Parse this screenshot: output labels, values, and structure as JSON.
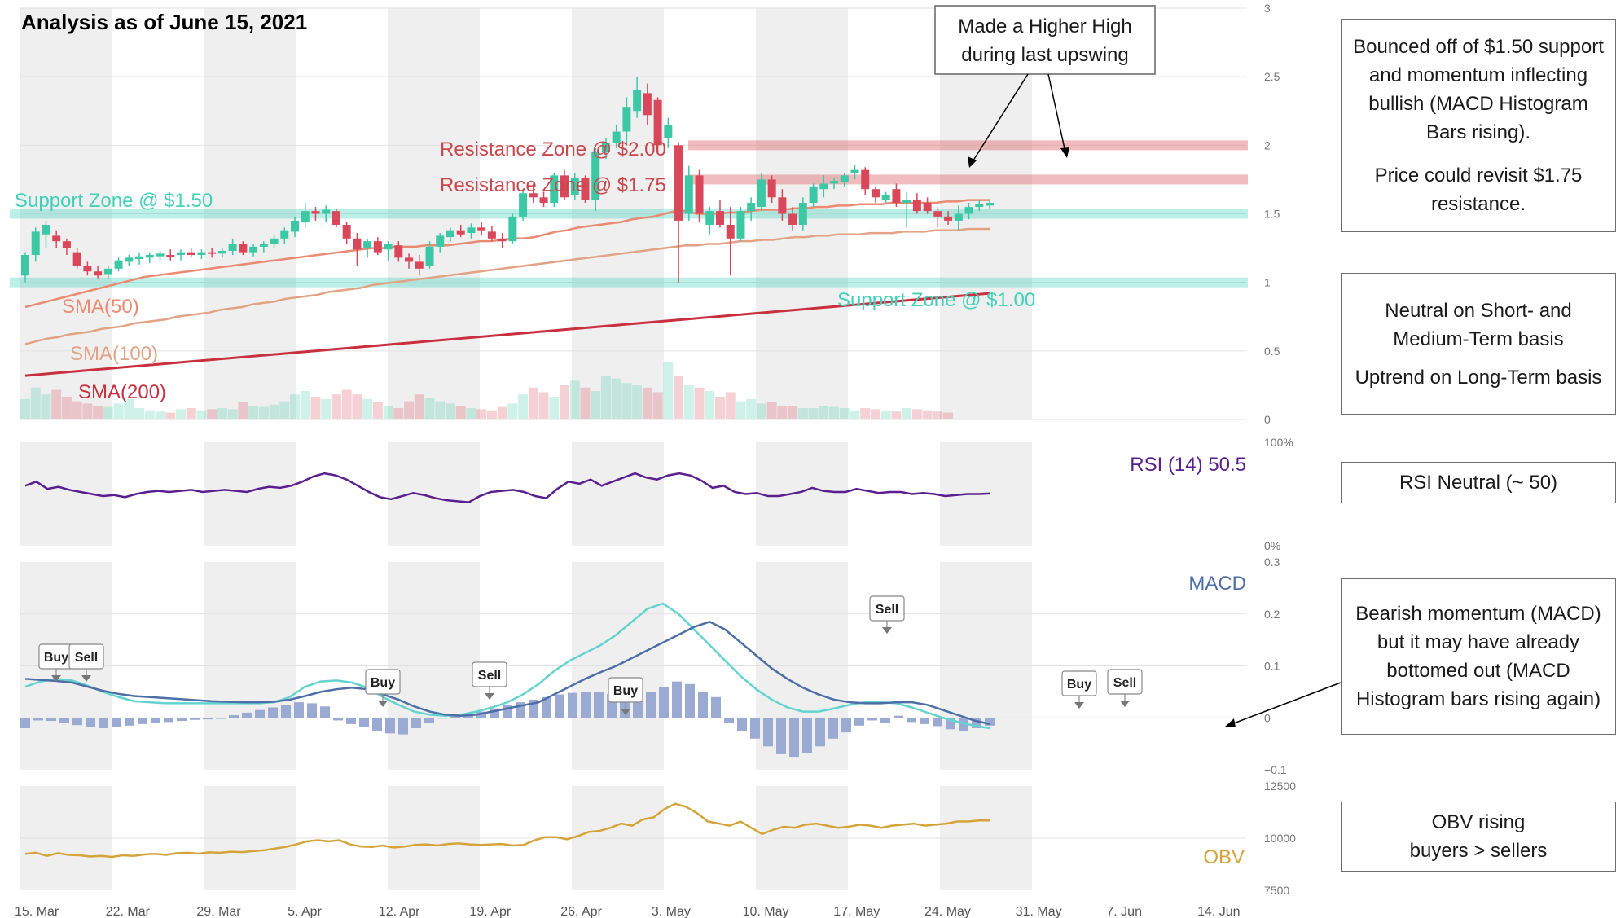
{
  "title": "Analysis as of June 15, 2021",
  "colors": {
    "up": "#3cc8a5",
    "down": "#d9485a",
    "support": "#3fd2b9",
    "resistance": "#e06a6e",
    "sma50": "#ea8a72",
    "sma100": "#e2a284",
    "sma200": "#c8303f",
    "rsi": "#5a1f8f",
    "macd": "#4e6ea8",
    "signal": "#63d3cf",
    "hist": "#9aaad3",
    "obv": "#d4a43a"
  },
  "x_labels": [
    "15. Mar",
    "22. Mar",
    "29. Mar",
    "5. Apr",
    "12. Apr",
    "19. Apr",
    "26. Apr",
    "3. May",
    "10. May",
    "17. May",
    "24. May",
    "31. May",
    "7. Jun",
    "14. Jun"
  ],
  "price_axis": {
    "ticks": [
      "3",
      "2.5",
      "2",
      "1.5",
      "1",
      "0.5",
      "0"
    ],
    "min": 0,
    "max": 3
  },
  "rsi_axis": {
    "ticks": [
      "100%",
      "0%"
    ]
  },
  "macd_axis": {
    "ticks": [
      "0.3",
      "0.2",
      "0.1",
      "0",
      "−0.1"
    ],
    "min": -0.1,
    "max": 0.3
  },
  "obv_axis": {
    "ticks": [
      "12500",
      "10000",
      "7500"
    ],
    "min": 7500,
    "max": 12500
  },
  "zones": {
    "support_150": "Support Zone @ $1.50",
    "support_100": "Support Zone @ $1.00",
    "resistance_200": "Resistance Zone @ $2.00",
    "resistance_175": "Resistance Zone @ $1.75"
  },
  "sma_labels": {
    "sma50": "SMA(50)",
    "sma100": "SMA(100)",
    "sma200": "SMA(200)"
  },
  "panel_labels": {
    "rsi": "RSI (14)  50.5",
    "macd": "MACD",
    "obv": "OBV"
  },
  "callout": [
    "Made a Higher High",
    "during last upswing"
  ],
  "signal_labels": [
    "Buy",
    "Sell",
    "Buy",
    "Sell",
    "Buy",
    "Sell",
    "Buy",
    "Sell"
  ],
  "notes": {
    "price_1": "Bounced off of $1.50 support and momentum inflecting bullish (MACD Histogram Bars rising).",
    "price_2": "Price could revisit $1.75 resistance.",
    "trend_1": "Neutral on Short- and Medium-Term basis",
    "trend_2": "Uptrend on Long-Term basis",
    "rsi": "RSI Neutral (~ 50)",
    "macd": "Bearish momentum (MACD) but it may have already bottomed out (MACD Histogram bars rising again)",
    "obv_1": "OBV rising",
    "obv_2": "buyers > sellers"
  },
  "chart_data": {
    "type": "candlestick",
    "title": "Analysis as of June 15, 2021",
    "candles": [
      {
        "o": 1.05,
        "h": 1.22,
        "l": 1.0,
        "c": 1.2
      },
      {
        "o": 1.2,
        "h": 1.4,
        "l": 1.15,
        "c": 1.37
      },
      {
        "o": 1.35,
        "h": 1.45,
        "l": 1.25,
        "c": 1.42
      },
      {
        "o": 1.34,
        "h": 1.38,
        "l": 1.25,
        "c": 1.3
      },
      {
        "o": 1.3,
        "h": 1.32,
        "l": 1.2,
        "c": 1.25
      },
      {
        "o": 1.22,
        "h": 1.25,
        "l": 1.1,
        "c": 1.12
      },
      {
        "o": 1.12,
        "h": 1.15,
        "l": 1.05,
        "c": 1.08
      },
      {
        "o": 1.08,
        "h": 1.12,
        "l": 1.03,
        "c": 1.05
      },
      {
        "o": 1.06,
        "h": 1.12,
        "l": 1.03,
        "c": 1.1
      },
      {
        "o": 1.1,
        "h": 1.18,
        "l": 1.08,
        "c": 1.16
      },
      {
        "o": 1.15,
        "h": 1.2,
        "l": 1.12,
        "c": 1.18
      },
      {
        "o": 1.17,
        "h": 1.22,
        "l": 1.13,
        "c": 1.19
      },
      {
        "o": 1.18,
        "h": 1.22,
        "l": 1.14,
        "c": 1.2
      },
      {
        "o": 1.19,
        "h": 1.23,
        "l": 1.15,
        "c": 1.21
      },
      {
        "o": 1.2,
        "h": 1.24,
        "l": 1.16,
        "c": 1.19
      },
      {
        "o": 1.2,
        "h": 1.24,
        "l": 1.16,
        "c": 1.22
      },
      {
        "o": 1.22,
        "h": 1.25,
        "l": 1.18,
        "c": 1.2
      },
      {
        "o": 1.2,
        "h": 1.24,
        "l": 1.17,
        "c": 1.22
      },
      {
        "o": 1.22,
        "h": 1.25,
        "l": 1.18,
        "c": 1.21
      },
      {
        "o": 1.21,
        "h": 1.25,
        "l": 1.18,
        "c": 1.23
      },
      {
        "o": 1.23,
        "h": 1.32,
        "l": 1.2,
        "c": 1.28
      },
      {
        "o": 1.28,
        "h": 1.3,
        "l": 1.2,
        "c": 1.22
      },
      {
        "o": 1.22,
        "h": 1.28,
        "l": 1.19,
        "c": 1.26
      },
      {
        "o": 1.26,
        "h": 1.3,
        "l": 1.22,
        "c": 1.28
      },
      {
        "o": 1.28,
        "h": 1.35,
        "l": 1.25,
        "c": 1.32
      },
      {
        "o": 1.32,
        "h": 1.4,
        "l": 1.28,
        "c": 1.38
      },
      {
        "o": 1.37,
        "h": 1.48,
        "l": 1.33,
        "c": 1.45
      },
      {
        "o": 1.44,
        "h": 1.58,
        "l": 1.4,
        "c": 1.52
      },
      {
        "o": 1.52,
        "h": 1.55,
        "l": 1.45,
        "c": 1.5
      },
      {
        "o": 1.5,
        "h": 1.56,
        "l": 1.44,
        "c": 1.53
      },
      {
        "o": 1.52,
        "h": 1.54,
        "l": 1.4,
        "c": 1.42
      },
      {
        "o": 1.42,
        "h": 1.44,
        "l": 1.28,
        "c": 1.32
      },
      {
        "o": 1.32,
        "h": 1.36,
        "l": 1.12,
        "c": 1.24
      },
      {
        "o": 1.25,
        "h": 1.32,
        "l": 1.18,
        "c": 1.3
      },
      {
        "o": 1.3,
        "h": 1.33,
        "l": 1.2,
        "c": 1.22
      },
      {
        "o": 1.24,
        "h": 1.3,
        "l": 1.16,
        "c": 1.28
      },
      {
        "o": 1.27,
        "h": 1.3,
        "l": 1.15,
        "c": 1.18
      },
      {
        "o": 1.18,
        "h": 1.21,
        "l": 1.1,
        "c": 1.15
      },
      {
        "o": 1.15,
        "h": 1.2,
        "l": 1.05,
        "c": 1.1
      },
      {
        "o": 1.12,
        "h": 1.3,
        "l": 1.1,
        "c": 1.26
      },
      {
        "o": 1.26,
        "h": 1.36,
        "l": 1.22,
        "c": 1.34
      },
      {
        "o": 1.33,
        "h": 1.4,
        "l": 1.3,
        "c": 1.38
      },
      {
        "o": 1.38,
        "h": 1.42,
        "l": 1.33,
        "c": 1.35
      },
      {
        "o": 1.36,
        "h": 1.43,
        "l": 1.32,
        "c": 1.4
      },
      {
        "o": 1.4,
        "h": 1.44,
        "l": 1.34,
        "c": 1.38
      },
      {
        "o": 1.37,
        "h": 1.41,
        "l": 1.3,
        "c": 1.32
      },
      {
        "o": 1.32,
        "h": 1.36,
        "l": 1.25,
        "c": 1.3
      },
      {
        "o": 1.3,
        "h": 1.5,
        "l": 1.28,
        "c": 1.48
      },
      {
        "o": 1.48,
        "h": 1.68,
        "l": 1.45,
        "c": 1.65
      },
      {
        "o": 1.65,
        "h": 1.72,
        "l": 1.58,
        "c": 1.62
      },
      {
        "o": 1.62,
        "h": 1.66,
        "l": 1.55,
        "c": 1.58
      },
      {
        "o": 1.58,
        "h": 1.8,
        "l": 1.55,
        "c": 1.78
      },
      {
        "o": 1.78,
        "h": 1.82,
        "l": 1.6,
        "c": 1.62
      },
      {
        "o": 1.64,
        "h": 1.8,
        "l": 1.6,
        "c": 1.76
      },
      {
        "o": 1.76,
        "h": 1.78,
        "l": 1.58,
        "c": 1.6
      },
      {
        "o": 1.6,
        "h": 1.98,
        "l": 1.52,
        "c": 1.95
      },
      {
        "o": 1.95,
        "h": 2.05,
        "l": 1.9,
        "c": 2.02
      },
      {
        "o": 2.02,
        "h": 2.15,
        "l": 1.98,
        "c": 2.1
      },
      {
        "o": 2.1,
        "h": 2.35,
        "l": 2.0,
        "c": 2.28
      },
      {
        "o": 2.25,
        "h": 2.5,
        "l": 2.2,
        "c": 2.4
      },
      {
        "o": 2.38,
        "h": 2.45,
        "l": 2.15,
        "c": 2.22
      },
      {
        "o": 2.33,
        "h": 2.35,
        "l": 1.95,
        "c": 2.0
      },
      {
        "o": 2.05,
        "h": 2.2,
        "l": 1.98,
        "c": 2.15
      },
      {
        "o": 2.0,
        "h": 2.02,
        "l": 1.0,
        "c": 1.45
      },
      {
        "o": 1.5,
        "h": 1.85,
        "l": 1.45,
        "c": 1.78
      },
      {
        "o": 1.78,
        "h": 1.82,
        "l": 1.44,
        "c": 1.5
      },
      {
        "o": 1.42,
        "h": 1.55,
        "l": 1.35,
        "c": 1.52
      },
      {
        "o": 1.52,
        "h": 1.6,
        "l": 1.4,
        "c": 1.42
      },
      {
        "o": 1.42,
        "h": 1.55,
        "l": 1.05,
        "c": 1.32
      },
      {
        "o": 1.32,
        "h": 1.55,
        "l": 1.3,
        "c": 1.52
      },
      {
        "o": 1.52,
        "h": 1.62,
        "l": 1.45,
        "c": 1.58
      },
      {
        "o": 1.55,
        "h": 1.8,
        "l": 1.52,
        "c": 1.75
      },
      {
        "o": 1.75,
        "h": 1.78,
        "l": 1.58,
        "c": 1.62
      },
      {
        "o": 1.62,
        "h": 1.68,
        "l": 1.45,
        "c": 1.5
      },
      {
        "o": 1.5,
        "h": 1.55,
        "l": 1.38,
        "c": 1.42
      },
      {
        "o": 1.42,
        "h": 1.62,
        "l": 1.38,
        "c": 1.58
      },
      {
        "o": 1.58,
        "h": 1.72,
        "l": 1.55,
        "c": 1.7
      },
      {
        "o": 1.68,
        "h": 1.78,
        "l": 1.62,
        "c": 1.72
      },
      {
        "o": 1.72,
        "h": 1.76,
        "l": 1.68,
        "c": 1.74
      },
      {
        "o": 1.73,
        "h": 1.8,
        "l": 1.7,
        "c": 1.78
      },
      {
        "o": 1.8,
        "h": 1.86,
        "l": 1.75,
        "c": 1.82
      },
      {
        "o": 1.82,
        "h": 1.84,
        "l": 1.64,
        "c": 1.68
      },
      {
        "o": 1.68,
        "h": 1.7,
        "l": 1.58,
        "c": 1.62
      },
      {
        "o": 1.6,
        "h": 1.66,
        "l": 1.58,
        "c": 1.64
      },
      {
        "o": 1.68,
        "h": 1.72,
        "l": 1.55,
        "c": 1.58
      },
      {
        "o": 1.58,
        "h": 1.66,
        "l": 1.4,
        "c": 1.6
      },
      {
        "o": 1.6,
        "h": 1.65,
        "l": 1.5,
        "c": 1.52
      },
      {
        "o": 1.58,
        "h": 1.62,
        "l": 1.5,
        "c": 1.52
      },
      {
        "o": 1.52,
        "h": 1.55,
        "l": 1.4,
        "c": 1.48
      },
      {
        "o": 1.48,
        "h": 1.52,
        "l": 1.42,
        "c": 1.45
      },
      {
        "o": 1.45,
        "h": 1.56,
        "l": 1.38,
        "c": 1.5
      },
      {
        "o": 1.5,
        "h": 1.58,
        "l": 1.46,
        "c": 1.55
      },
      {
        "o": 1.55,
        "h": 1.6,
        "l": 1.52,
        "c": 1.57
      },
      {
        "o": 1.56,
        "h": 1.6,
        "l": 1.54,
        "c": 1.58
      }
    ],
    "volume": [
      0.18,
      0.28,
      0.22,
      0.26,
      0.2,
      0.16,
      0.14,
      0.12,
      0.11,
      0.14,
      0.18,
      0.1,
      0.08,
      0.07,
      0.06,
      0.09,
      0.1,
      0.08,
      0.09,
      0.1,
      0.09,
      0.15,
      0.12,
      0.11,
      0.13,
      0.16,
      0.22,
      0.25,
      0.2,
      0.18,
      0.22,
      0.26,
      0.22,
      0.18,
      0.15,
      0.12,
      0.1,
      0.16,
      0.22,
      0.19,
      0.16,
      0.14,
      0.12,
      0.1,
      0.09,
      0.08,
      0.11,
      0.14,
      0.22,
      0.28,
      0.24,
      0.2,
      0.3,
      0.34,
      0.28,
      0.25,
      0.38,
      0.36,
      0.32,
      0.3,
      0.28,
      0.24,
      0.5,
      0.38,
      0.3,
      0.28,
      0.25,
      0.2,
      0.24,
      0.16,
      0.18,
      0.14,
      0.15,
      0.12,
      0.12,
      0.1,
      0.1,
      0.12,
      0.11,
      0.1,
      0.08,
      0.1,
      0.09,
      0.08,
      0.07,
      0.1,
      0.09,
      0.08,
      0.07,
      0.06
    ],
    "sma50": [
      0.82,
      0.84,
      0.86,
      0.88,
      0.9,
      0.92,
      0.94,
      0.96,
      0.98,
      1.0,
      1.02,
      1.04,
      1.05,
      1.06,
      1.07,
      1.08,
      1.09,
      1.1,
      1.11,
      1.12,
      1.13,
      1.14,
      1.15,
      1.16,
      1.17,
      1.18,
      1.19,
      1.2,
      1.21,
      1.22,
      1.23,
      1.24,
      1.25,
      1.25,
      1.26,
      1.26,
      1.26,
      1.27,
      1.27,
      1.27,
      1.28,
      1.29,
      1.3,
      1.3,
      1.31,
      1.32,
      1.32,
      1.33,
      1.35,
      1.37,
      1.38,
      1.4,
      1.41,
      1.42,
      1.43,
      1.44,
      1.46,
      1.47,
      1.48,
      1.5,
      1.52,
      1.52,
      1.5,
      1.5,
      1.5,
      1.51,
      1.51,
      1.52,
      1.53,
      1.53,
      1.53,
      1.54,
      1.54,
      1.55,
      1.55,
      1.56,
      1.56,
      1.57,
      1.57,
      1.57,
      1.58,
      1.58,
      1.58,
      1.58,
      1.58,
      1.59,
      1.59,
      1.6,
      1.6,
      1.6
    ],
    "sma100": [
      0.55,
      0.57,
      0.59,
      0.6,
      0.62,
      0.63,
      0.64,
      0.66,
      0.67,
      0.68,
      0.7,
      0.71,
      0.72,
      0.73,
      0.75,
      0.76,
      0.77,
      0.78,
      0.8,
      0.81,
      0.82,
      0.84,
      0.85,
      0.86,
      0.88,
      0.89,
      0.9,
      0.91,
      0.93,
      0.94,
      0.95,
      0.96,
      0.98,
      0.99,
      1.0,
      1.01,
      1.02,
      1.03,
      1.04,
      1.05,
      1.06,
      1.07,
      1.08,
      1.09,
      1.1,
      1.11,
      1.12,
      1.13,
      1.14,
      1.15,
      1.16,
      1.17,
      1.18,
      1.19,
      1.2,
      1.21,
      1.22,
      1.23,
      1.24,
      1.25,
      1.26,
      1.27,
      1.27,
      1.28,
      1.28,
      1.29,
      1.3,
      1.3,
      1.31,
      1.31,
      1.32,
      1.33,
      1.33,
      1.34,
      1.34,
      1.35,
      1.35,
      1.35,
      1.36,
      1.36,
      1.36,
      1.37,
      1.37,
      1.37,
      1.38,
      1.38,
      1.38,
      1.39,
      1.39,
      1.39
    ],
    "sma200": [
      0.32,
      0.33,
      0.34,
      0.35,
      0.36,
      0.37,
      0.38,
      0.39,
      0.4,
      0.41,
      0.42,
      0.43,
      0.44,
      0.45,
      0.46,
      0.47,
      0.48,
      0.49,
      0.5,
      0.51,
      0.52,
      0.53,
      0.54,
      0.55,
      0.56,
      0.57,
      0.58,
      0.59,
      0.6,
      0.61,
      0.62,
      0.63,
      0.64,
      0.65,
      0.66,
      0.67,
      0.68,
      0.69,
      0.7,
      0.71,
      0.72,
      0.73,
      0.74,
      0.75,
      0.76,
      0.77,
      0.78,
      0.79,
      0.8,
      0.81,
      0.82,
      0.83,
      0.84,
      0.85,
      0.86,
      0.87,
      0.88,
      0.89,
      0.9,
      0.91,
      0.92
    ],
    "rsi": [
      58,
      62,
      55,
      57,
      54,
      52,
      50,
      48,
      49,
      47,
      50,
      52,
      53,
      52,
      53,
      54,
      52,
      53,
      54,
      53,
      52,
      55,
      57,
      56,
      58,
      62,
      67,
      70,
      68,
      64,
      58,
      52,
      47,
      45,
      48,
      51,
      49,
      46,
      44,
      43,
      42,
      48,
      52,
      53,
      54,
      52,
      48,
      46,
      55,
      62,
      60,
      64,
      58,
      62,
      66,
      70,
      66,
      64,
      68,
      70,
      68,
      63,
      56,
      58,
      52,
      50,
      51,
      48,
      48,
      50,
      52,
      56,
      53,
      52,
      52,
      55,
      53,
      51,
      52,
      52,
      50,
      51,
      50,
      48,
      49,
      50,
      50,
      50.5
    ],
    "macd": [
      0.075,
      0.073,
      0.071,
      0.068,
      0.06,
      0.052,
      0.046,
      0.042,
      0.04,
      0.038,
      0.036,
      0.034,
      0.032,
      0.031,
      0.03,
      0.03,
      0.031,
      0.035,
      0.042,
      0.05,
      0.055,
      0.058,
      0.055,
      0.045,
      0.035,
      0.022,
      0.012,
      0.006,
      0.004,
      0.006,
      0.012,
      0.018,
      0.024,
      0.03,
      0.045,
      0.06,
      0.075,
      0.088,
      0.1,
      0.115,
      0.13,
      0.145,
      0.16,
      0.175,
      0.185,
      0.17,
      0.145,
      0.12,
      0.095,
      0.075,
      0.058,
      0.045,
      0.035,
      0.03,
      0.028,
      0.028,
      0.03,
      0.03,
      0.025,
      0.015,
      0.005,
      -0.005,
      -0.012
    ],
    "signal": [
      0.06,
      0.07,
      0.075,
      0.072,
      0.062,
      0.05,
      0.04,
      0.032,
      0.03,
      0.028,
      0.028,
      0.028,
      0.028,
      0.028,
      0.028,
      0.028,
      0.03,
      0.04,
      0.06,
      0.07,
      0.072,
      0.068,
      0.058,
      0.04,
      0.025,
      0.012,
      0.006,
      0.004,
      0.006,
      0.012,
      0.02,
      0.03,
      0.045,
      0.065,
      0.09,
      0.11,
      0.125,
      0.14,
      0.16,
      0.185,
      0.21,
      0.22,
      0.2,
      0.17,
      0.14,
      0.11,
      0.08,
      0.055,
      0.035,
      0.02,
      0.012,
      0.012,
      0.018,
      0.025,
      0.03,
      0.03,
      0.028,
      0.02,
      0.01,
      0.0,
      -0.008,
      -0.015,
      -0.02
    ],
    "histogram": [
      -0.02,
      -0.005,
      -0.006,
      -0.01,
      -0.014,
      -0.018,
      -0.02,
      -0.018,
      -0.015,
      -0.012,
      -0.01,
      -0.008,
      -0.006,
      -0.004,
      -0.003,
      -0.002,
      0.005,
      0.01,
      0.015,
      0.02,
      0.025,
      0.03,
      0.028,
      0.022,
      -0.005,
      -0.012,
      -0.018,
      -0.025,
      -0.03,
      -0.032,
      -0.02,
      -0.01,
      0.0,
      0.005,
      0.008,
      0.012,
      0.018,
      0.025,
      0.03,
      0.035,
      0.04,
      0.045,
      0.048,
      0.05,
      0.05,
      0.046,
      0.042,
      0.04,
      0.05,
      0.06,
      0.07,
      0.065,
      0.05,
      0.04,
      -0.01,
      -0.025,
      -0.04,
      -0.055,
      -0.07,
      -0.075,
      -0.068,
      -0.055,
      -0.04,
      -0.028,
      -0.015,
      -0.005,
      -0.01,
      0.004,
      -0.008,
      -0.012,
      -0.016,
      -0.022,
      -0.025,
      -0.02,
      -0.015
    ],
    "obv": [
      9250,
      9300,
      9150,
      9280,
      9200,
      9180,
      9120,
      9150,
      9100,
      9180,
      9150,
      9220,
      9250,
      9200,
      9280,
      9300,
      9260,
      9320,
      9300,
      9350,
      9330,
      9380,
      9420,
      9500,
      9580,
      9700,
      9850,
      9900,
      9850,
      9900,
      9700,
      9600,
      9580,
      9650,
      9550,
      9600,
      9680,
      9700,
      9650,
      9720,
      9750,
      9700,
      9680,
      9700,
      9720,
      9650,
      9680,
      9900,
      10050,
      10050,
      9950,
      10100,
      10300,
      10350,
      10500,
      10700,
      10600,
      10900,
      11000,
      11400,
      11650,
      11500,
      11200,
      10800,
      10700,
      10600,
      10800,
      10500,
      10200,
      10400,
      10550,
      10500,
      10650,
      10700,
      10600,
      10500,
      10550,
      10650,
      10600,
      10500,
      10600,
      10650,
      10700,
      10600,
      10650,
      10700,
      10800,
      10800,
      10850,
      10850
    ]
  }
}
